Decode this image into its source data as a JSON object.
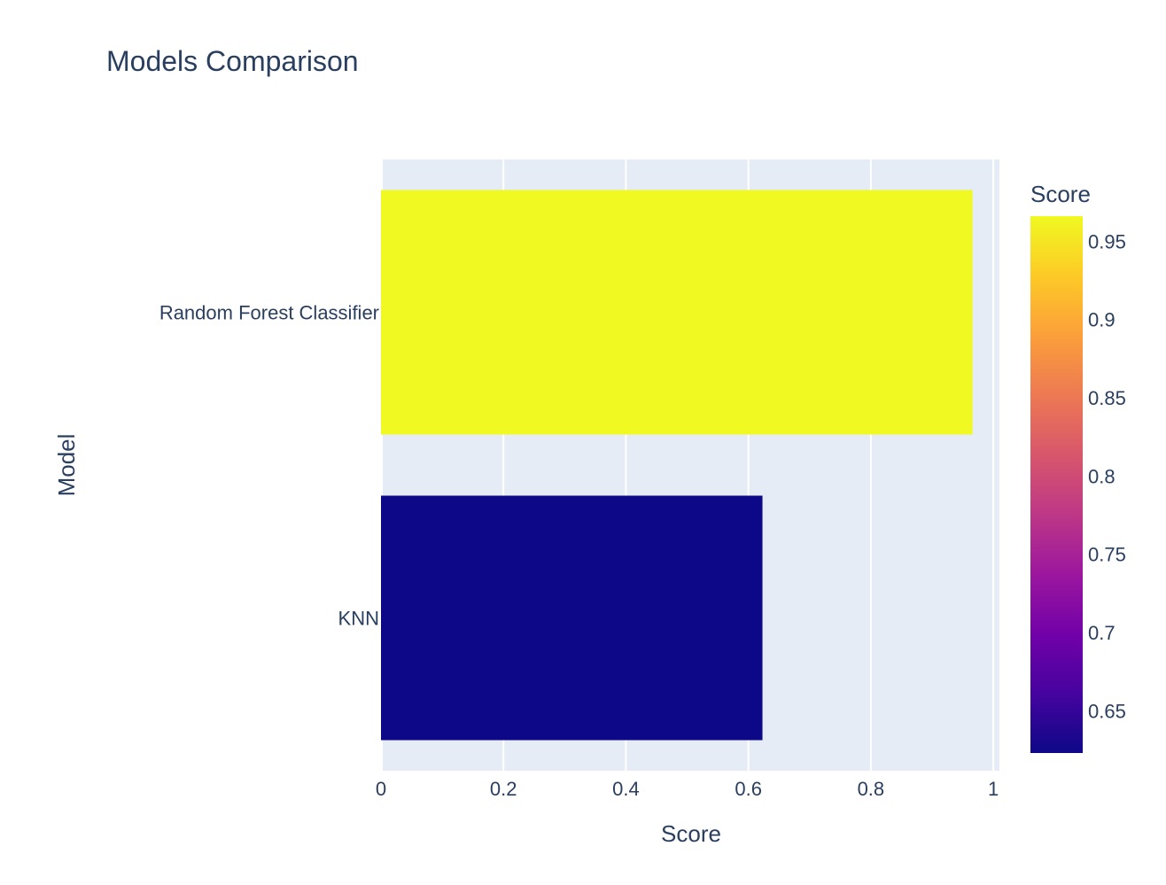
{
  "chart_data": {
    "type": "bar",
    "orientation": "horizontal",
    "title": "Models Comparison",
    "xlabel": "Score",
    "ylabel": "Model",
    "categories": [
      "Random Forest Classifier",
      "KNN"
    ],
    "values": [
      0.966,
      0.623
    ],
    "xlim": [
      0,
      1.01
    ],
    "x_ticks": [
      0,
      0.2,
      0.4,
      0.6,
      0.8,
      1
    ],
    "x_tick_labels": [
      "0",
      "0.2",
      "0.4",
      "0.6",
      "0.8",
      "1"
    ],
    "grid": true,
    "colorbar": {
      "title": "Score",
      "range": [
        0.623,
        0.966
      ],
      "ticks": [
        0.65,
        0.7,
        0.75,
        0.8,
        0.85,
        0.9,
        0.95
      ],
      "tick_labels": [
        "0.65",
        "0.7",
        "0.75",
        "0.8",
        "0.85",
        "0.9",
        "0.95"
      ],
      "colorscale": [
        "#0d0887",
        "#46039f",
        "#7201a8",
        "#9c179e",
        "#bd3786",
        "#d8576b",
        "#ed7953",
        "#fb9f3a",
        "#fdca26",
        "#f0f921"
      ]
    },
    "colors": {
      "plot_background": "#e5ecf6",
      "gridline": "#ffffff",
      "text": "#2a3f5f"
    }
  }
}
